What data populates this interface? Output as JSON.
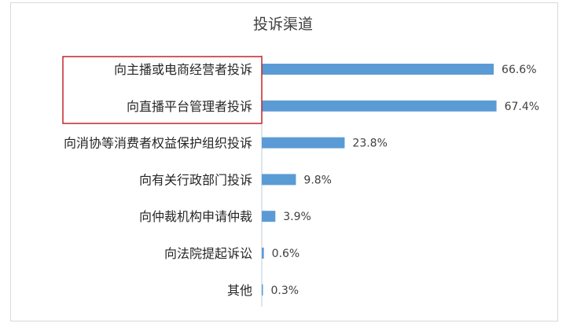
{
  "chart_data": {
    "type": "bar",
    "orientation": "horizontal",
    "title": "投诉渠道",
    "categories": [
      "向主播或电商经营者投诉",
      "向直播平台管理者投诉",
      "向消协等消费者权益保护组织投诉",
      "向有关行政部门投诉",
      "向仲裁机构申请仲裁",
      "向法院提起诉讼",
      "其他"
    ],
    "values": [
      66.6,
      67.4,
      23.8,
      9.8,
      3.9,
      0.6,
      0.3
    ],
    "value_labels": [
      "66.6%",
      "67.4%",
      "23.8%",
      "9.8%",
      "3.9%",
      "0.6%",
      "0.3%"
    ],
    "unit": "%",
    "xlim": [
      0,
      70
    ],
    "grid": false,
    "legend": "none",
    "highlight": {
      "categories": [
        "向主播或电商经营者投诉",
        "向直播平台管理者投诉"
      ],
      "color": "#c0272d"
    },
    "bar_color": "#5b9bd5"
  }
}
